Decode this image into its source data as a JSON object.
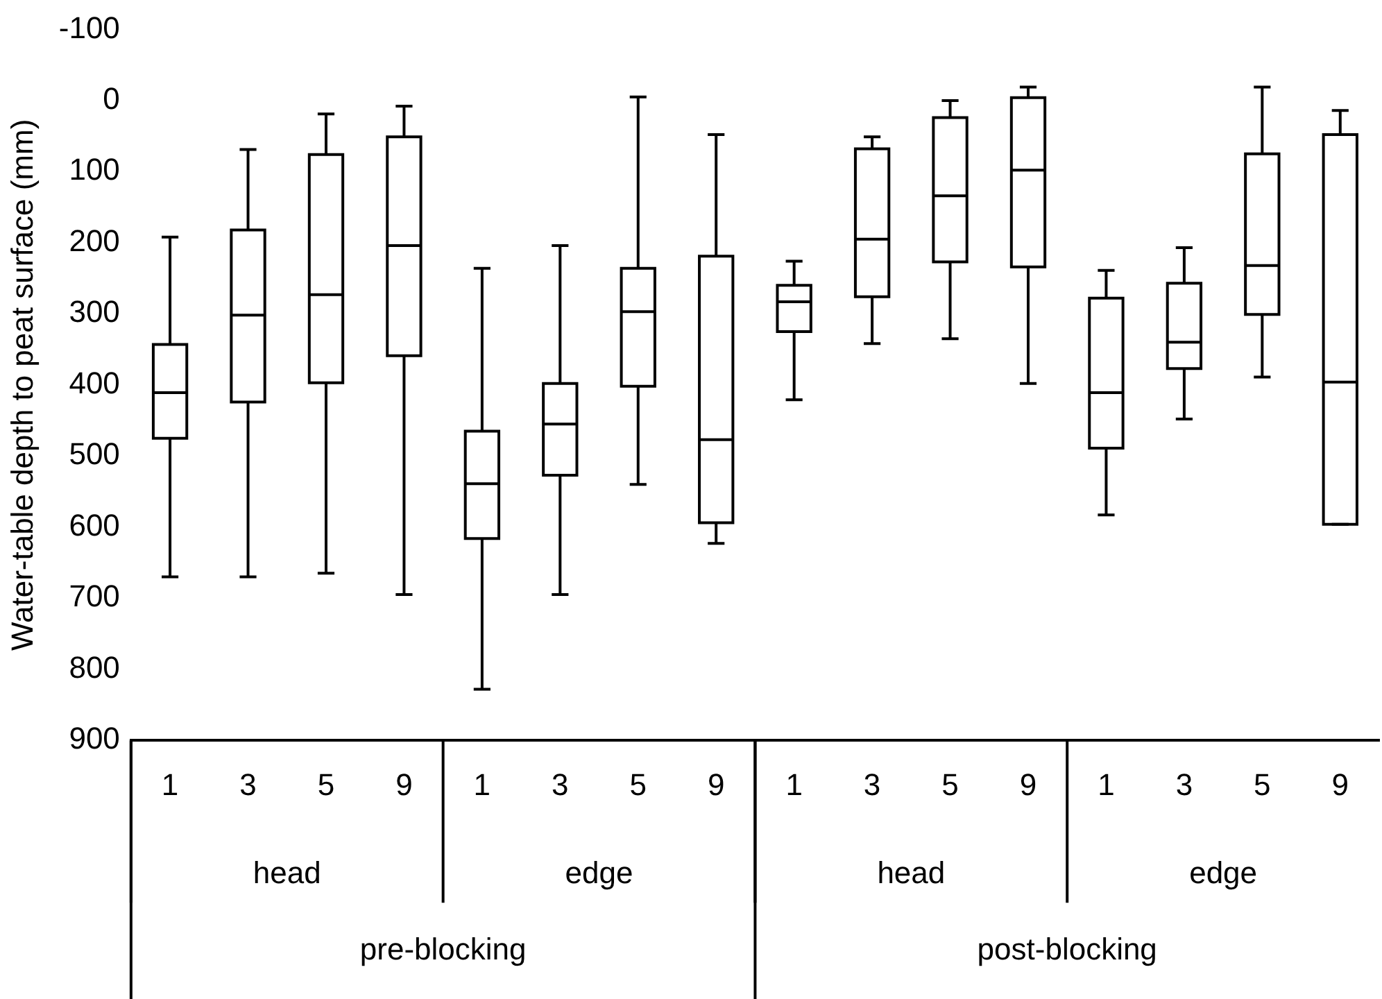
{
  "chart_data": {
    "type": "box",
    "ylabel": "Water-table depth to peat surface (mm)",
    "categories": [
      "1",
      "3",
      "5",
      "9",
      "1",
      "3",
      "5",
      "9",
      "1",
      "3",
      "5",
      "9",
      "1",
      "3",
      "5",
      "9"
    ],
    "boxes": [
      {
        "low": 192,
        "q1": 343,
        "median": 411,
        "q3": 475,
        "high": 670
      },
      {
        "low": 69,
        "q1": 182,
        "median": 302,
        "q3": 424,
        "high": 670
      },
      {
        "low": 19,
        "q1": 76,
        "median": 273,
        "q3": 397,
        "high": 665
      },
      {
        "low": 8,
        "q1": 51,
        "median": 204,
        "q3": 359,
        "high": 695
      },
      {
        "low": 236,
        "q1": 465,
        "median": 539,
        "q3": 616,
        "high": 828
      },
      {
        "low": 204,
        "q1": 398,
        "median": 455,
        "q3": 527,
        "high": 695
      },
      {
        "low": -5,
        "q1": 236,
        "median": 297,
        "q3": 402,
        "high": 540
      },
      {
        "low": 48,
        "q1": 219,
        "median": 477,
        "q3": 594,
        "high": 623
      },
      {
        "low": 226,
        "q1": 260,
        "median": 283,
        "q3": 325,
        "high": 421
      },
      {
        "low": 51,
        "q1": 68,
        "median": 195,
        "q3": 276,
        "high": 342
      },
      {
        "low": 0,
        "q1": 24,
        "median": 134,
        "q3": 227,
        "high": 335
      },
      {
        "low": -19,
        "q1": -4,
        "median": 98,
        "q3": 234,
        "high": 398
      },
      {
        "low": 239,
        "q1": 278,
        "median": 411,
        "q3": 489,
        "high": 583
      },
      {
        "low": 207,
        "q1": 257,
        "median": 340,
        "q3": 377,
        "high": 448
      },
      {
        "low": -19,
        "q1": 75,
        "median": 232,
        "q3": 301,
        "high": 389
      },
      {
        "low": 14,
        "q1": 48,
        "median": 396,
        "q3": 596,
        "high": 596
      }
    ],
    "ylim": [
      900,
      -100
    ],
    "yticks": [
      -100,
      0,
      100,
      200,
      300,
      400,
      500,
      600,
      700,
      800,
      900
    ],
    "annotations": [
      "head",
      "edge",
      "head",
      "edge",
      "pre-blocking",
      "post-blocking"
    ]
  }
}
